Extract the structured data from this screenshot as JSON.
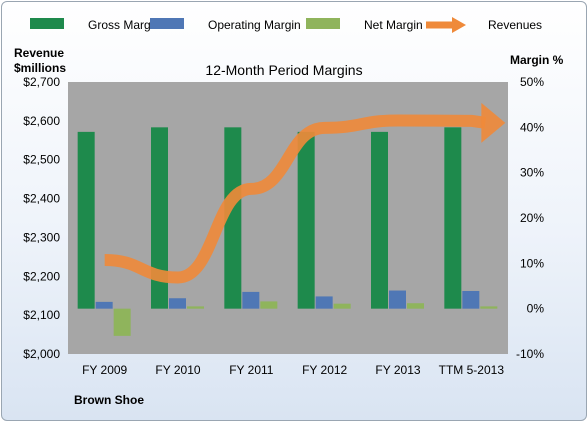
{
  "chart_data": {
    "type": "bar",
    "title": "12-Month Period Margins",
    "categories": [
      "FY 2009",
      "FY 2010",
      "FY 2011",
      "FY 2012",
      "FY 2013",
      "TTM 5-2013"
    ],
    "series": [
      {
        "name": "Gross Margin",
        "type": "bar",
        "axis": "right",
        "color": "#1e8a4c",
        "values": [
          39,
          40,
          40,
          39,
          39,
          40
        ]
      },
      {
        "name": "Operating Margin",
        "type": "bar",
        "axis": "right",
        "color": "#4f77b5",
        "values": [
          1.5,
          2.3,
          3.7,
          2.7,
          4.0,
          3.9
        ]
      },
      {
        "name": "Net Margin",
        "type": "bar",
        "axis": "right",
        "color": "#8fb45c",
        "values": [
          -6.0,
          0.5,
          1.6,
          1.1,
          1.2,
          0.5
        ]
      },
      {
        "name": "Revenues",
        "type": "line",
        "axis": "left",
        "color": "#ef8a3a",
        "values": [
          2242,
          2197,
          2425,
          2582,
          2601,
          2600
        ]
      }
    ],
    "left_axis": {
      "label_line1": "Revenue",
      "label_line2": "$millions",
      "min": 2000,
      "max": 2700,
      "step": 100,
      "ticks": [
        "$2,000",
        "$2,100",
        "$2,200",
        "$2,300",
        "$2,400",
        "$2,500",
        "$2,600",
        "$2,700"
      ]
    },
    "right_axis": {
      "label": "Margin %",
      "min": -10,
      "max": 50,
      "step": 10,
      "ticks": [
        "-10%",
        "0%",
        "10%",
        "20%",
        "30%",
        "40%",
        "50%"
      ]
    },
    "grid": false,
    "legend": "top",
    "plot_background": "#a6a6a6",
    "company": "Brown Shoe"
  }
}
